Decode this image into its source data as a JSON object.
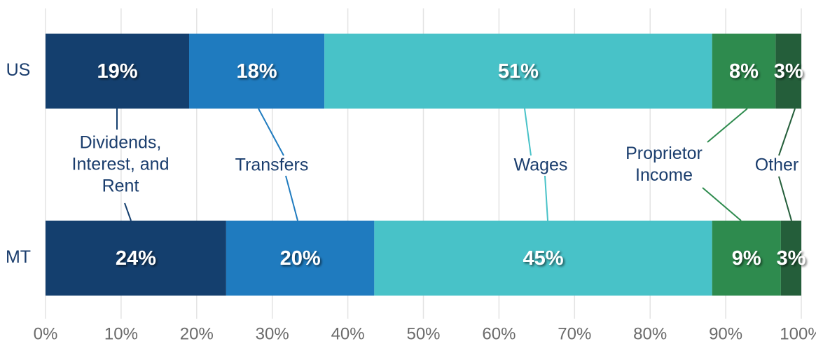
{
  "chart_data": {
    "type": "stacked_bar_horizontal",
    "categories": [
      "US",
      "MT"
    ],
    "series": [
      {
        "name": "Dividends, Interest, and Rent",
        "color": "#143f6e",
        "values": [
          19.0,
          23.9
        ],
        "value_labels": [
          "19%",
          "24%"
        ]
      },
      {
        "name": "Transfers",
        "color": "#1f7bbf",
        "values": [
          17.9,
          19.6
        ],
        "value_labels": [
          "18%",
          "20%"
        ]
      },
      {
        "name": "Wages",
        "color": "#48c2c8",
        "values": [
          51.3,
          44.7
        ],
        "value_labels": [
          "51%",
          "45%"
        ]
      },
      {
        "name": "Proprietor Income",
        "color": "#2e8b4e",
        "values": [
          8.4,
          9.1
        ],
        "value_labels": [
          "8%",
          "9%"
        ]
      },
      {
        "name": "Other",
        "color": "#245e3a",
        "values": [
          3.4,
          2.7
        ],
        "value_labels": [
          "3%",
          "3%"
        ]
      }
    ],
    "xlim": [
      0,
      100
    ],
    "xticks": [
      {
        "value": 0,
        "label": "0%"
      },
      {
        "value": 10,
        "label": "10%"
      },
      {
        "value": 20,
        "label": "20%"
      },
      {
        "value": 30,
        "label": "30%"
      },
      {
        "value": 40,
        "label": "40%"
      },
      {
        "value": 50,
        "label": "50%"
      },
      {
        "value": 60,
        "label": "60%"
      },
      {
        "value": 70,
        "label": "70%"
      },
      {
        "value": 80,
        "label": "80%"
      },
      {
        "value": 90,
        "label": "90%"
      },
      {
        "value": 100,
        "label": "100%"
      }
    ],
    "grid": true
  }
}
